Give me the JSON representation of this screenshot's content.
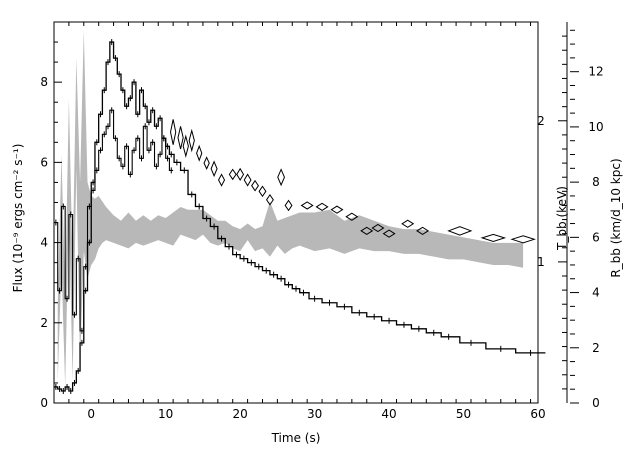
{
  "chart_data": {
    "type": "line",
    "xlabel": "Time (s)",
    "ylabel_left": "Flux (10⁻⁹ ergs cm⁻² s⁻¹)",
    "ylabel_right_inner": "T_bb (keV)",
    "ylabel_right_outer": "R_bb (km/d_10 kpc)",
    "xlim": [
      -5,
      60
    ],
    "ylim_left": [
      0,
      9.5
    ],
    "ylim_kT": [
      0,
      2.7
    ],
    "ylim_R": [
      0,
      13.8
    ],
    "x_ticks": [
      0,
      10,
      20,
      30,
      40,
      50,
      60
    ],
    "x_tick_labels": [
      "0",
      "10",
      "20",
      "30",
      "40",
      "50",
      "60"
    ],
    "y_left_ticks": [
      0,
      2,
      4,
      6,
      8
    ],
    "y_left_tick_labels": [
      "0",
      "2",
      "4",
      "6",
      "8"
    ],
    "kT_ticks": [
      1,
      2
    ],
    "kT_tick_labels": [
      "1",
      "2"
    ],
    "R_ticks": [
      0,
      2,
      4,
      6,
      8,
      10,
      12
    ],
    "R_tick_labels": [
      "0",
      "2",
      "4",
      "6",
      "8",
      "10",
      "12"
    ],
    "series": [
      {
        "name": "",
        "kind": "histogram",
        "axis": "left",
        "color": "#000000",
        "x": [
          -4.75,
          -4.25,
          -3.75,
          -3.25,
          -2.75,
          -2.25,
          -1.75,
          -1.25,
          -0.75,
          -0.25,
          0.25,
          0.75,
          1.25,
          1.75,
          2.25,
          2.75,
          3.25,
          3.75,
          4.25,
          4.75,
          5.25,
          5.75,
          6.25,
          6.75,
          7.25,
          7.75,
          8.25,
          8.75,
          9.25,
          9.75,
          10.25,
          10.75,
          11.5,
          12.5,
          13.5,
          14.5,
          15.5,
          16.5,
          17.5,
          18.5,
          19.5,
          20.5,
          21.5,
          22.5,
          23.5,
          24.5,
          25.5,
          26.5,
          27.5,
          28.5,
          30,
          32,
          34,
          36,
          38,
          40,
          42,
          44,
          46,
          48,
          51,
          55,
          59
        ],
        "y": [
          0.4,
          0.35,
          0.3,
          0.4,
          0.3,
          0.5,
          0.8,
          1.5,
          2.8,
          4.0,
          5.5,
          6.5,
          7.2,
          7.8,
          8.5,
          9.0,
          8.6,
          8.2,
          7.8,
          7.4,
          7.6,
          8.0,
          7.2,
          7.8,
          7.4,
          7.0,
          7.3,
          6.9,
          7.1,
          6.6,
          6.4,
          6.2,
          6.0,
          5.8,
          5.2,
          4.9,
          4.6,
          4.4,
          4.1,
          3.9,
          3.7,
          3.6,
          3.5,
          3.4,
          3.3,
          3.2,
          3.1,
          2.95,
          2.85,
          2.75,
          2.6,
          2.5,
          2.4,
          2.25,
          2.15,
          2.05,
          1.95,
          1.85,
          1.75,
          1.65,
          1.5,
          1.35,
          1.25
        ]
      },
      {
        "name": "",
        "kind": "histogram",
        "axis": "left",
        "color": "#000000",
        "x": [
          -4.75,
          -4.25,
          -3.75,
          -3.25,
          -2.75,
          -2.25,
          -1.75,
          -1.25,
          -0.75,
          -0.25,
          0.25,
          0.75,
          1.25,
          1.75,
          2.25,
          2.75,
          3.25,
          3.75,
          4.25,
          4.75,
          5.25,
          5.75,
          6.25,
          6.75,
          7.25,
          7.75,
          8.25,
          8.75,
          9.25,
          9.75,
          10.25,
          10.75
        ],
        "y": [
          4.5,
          2.8,
          4.9,
          2.6,
          4.7,
          2.2,
          3.6,
          1.8,
          3.4,
          4.9,
          5.3,
          5.8,
          6.3,
          6.7,
          6.9,
          7.3,
          6.6,
          6.1,
          5.9,
          6.4,
          5.7,
          6.3,
          6.6,
          6.1,
          6.9,
          6.3,
          6.5,
          5.9,
          6.2,
          6.6,
          6.1,
          5.8
        ]
      },
      {
        "name": "",
        "kind": "band",
        "axis": "R",
        "color": "#b8b8b8",
        "x": [
          -4.5,
          -4,
          -3.5,
          -3,
          -2.5,
          -2,
          -1.5,
          -1,
          -0.5,
          0,
          0.5,
          1,
          1.5,
          2,
          3,
          4,
          5,
          6,
          7,
          8,
          9,
          10,
          11,
          12,
          13,
          14,
          15,
          16,
          17,
          18,
          19,
          20,
          21,
          22,
          23,
          24,
          25,
          26,
          27,
          28,
          30,
          32,
          34,
          36,
          38,
          40,
          42,
          44,
          46,
          48,
          50,
          52,
          54,
          56,
          58
        ],
        "lower": [
          0.8,
          5.0,
          0.6,
          7.0,
          0.8,
          8.5,
          1.5,
          5.5,
          4.5,
          5.0,
          5.2,
          5.6,
          5.8,
          5.9,
          5.8,
          5.7,
          5.6,
          5.8,
          5.7,
          5.8,
          5.9,
          5.8,
          5.7,
          6.1,
          6.0,
          5.9,
          6.1,
          5.8,
          5.7,
          5.8,
          5.6,
          5.5,
          5.9,
          5.5,
          5.6,
          5.3,
          5.7,
          5.4,
          5.6,
          5.7,
          5.5,
          5.6,
          5.4,
          5.6,
          5.5,
          5.5,
          5.4,
          5.4,
          5.3,
          5.2,
          5.2,
          5.1,
          5.0,
          5.0,
          4.9
        ],
        "upper": [
          3.5,
          9.0,
          4.0,
          11.0,
          5.0,
          12.5,
          8.0,
          13.5,
          8.0,
          7.5,
          7.4,
          7.5,
          7.3,
          7.1,
          6.8,
          6.6,
          6.9,
          6.6,
          6.8,
          6.6,
          6.8,
          6.7,
          6.9,
          7.1,
          7.0,
          7.0,
          7.0,
          6.8,
          6.6,
          6.6,
          6.4,
          6.3,
          6.5,
          6.3,
          6.4,
          7.3,
          6.6,
          6.7,
          6.8,
          6.9,
          6.9,
          7.0,
          6.6,
          6.8,
          6.6,
          6.4,
          6.3,
          6.3,
          6.2,
          6.1,
          6.0,
          5.9,
          5.8,
          5.8,
          5.8
        ]
      },
      {
        "name": "",
        "kind": "diamonds",
        "axis": "kT",
        "color": "#000000",
        "x": [
          11,
          12,
          12.7,
          13.5,
          14.5,
          15.5,
          16.5,
          17.5,
          19,
          20,
          21,
          22,
          23,
          24,
          25.5,
          26.5,
          29,
          31,
          33,
          35,
          37,
          38.5,
          40,
          42.5,
          44.5,
          49.5,
          54,
          58
        ],
        "y": [
          1.92,
          1.88,
          1.82,
          1.86,
          1.77,
          1.7,
          1.66,
          1.58,
          1.62,
          1.62,
          1.58,
          1.54,
          1.5,
          1.44,
          1.6,
          1.4,
          1.4,
          1.39,
          1.37,
          1.32,
          1.22,
          1.24,
          1.2,
          1.27,
          1.22,
          1.22,
          1.17,
          1.16
        ],
        "w": [
          0.7,
          0.7,
          0.7,
          0.7,
          0.7,
          0.7,
          0.8,
          0.8,
          0.9,
          0.9,
          0.9,
          0.9,
          0.9,
          0.9,
          0.9,
          0.9,
          1.5,
          1.5,
          1.5,
          1.5,
          1.5,
          1.5,
          1.5,
          1.5,
          1.5,
          3.0,
          3.0,
          3.0
        ],
        "h": [
          0.18,
          0.16,
          0.14,
          0.14,
          0.1,
          0.08,
          0.1,
          0.08,
          0.07,
          0.08,
          0.08,
          0.07,
          0.07,
          0.07,
          0.11,
          0.07,
          0.05,
          0.05,
          0.05,
          0.05,
          0.05,
          0.05,
          0.05,
          0.05,
          0.05,
          0.06,
          0.05,
          0.05
        ]
      }
    ]
  }
}
